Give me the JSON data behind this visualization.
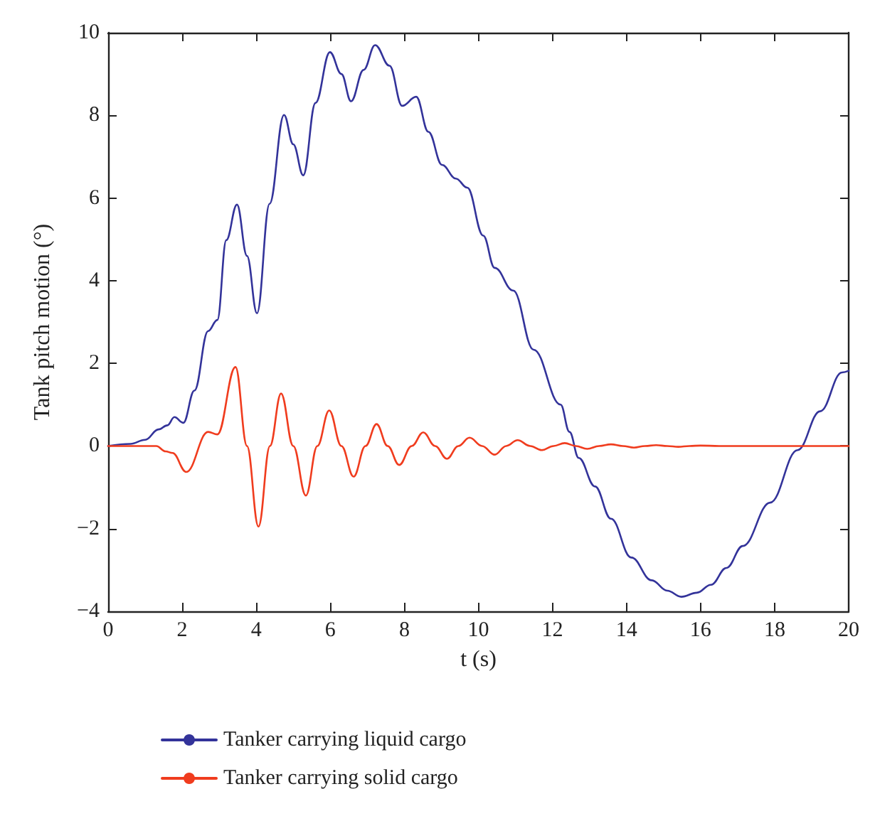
{
  "chart_data": {
    "type": "line",
    "xlabel": "t (s)",
    "ylabel": "Tank pitch motion (°)",
    "xlim": [
      0,
      20
    ],
    "ylim": [
      -4,
      10
    ],
    "xticks": [
      0,
      2,
      4,
      6,
      8,
      10,
      12,
      14,
      16,
      18,
      20
    ],
    "yticks": [
      -4,
      -2,
      0,
      2,
      4,
      6,
      8,
      10
    ],
    "grid": false,
    "legend": "bottom",
    "marker": "none",
    "line_style": "solid",
    "series": [
      {
        "name": "Tanker carrying liquid cargo",
        "color": "#33339a",
        "x": [
          0,
          0.6,
          1.0,
          1.36,
          1.6,
          1.79,
          2.03,
          2.33,
          2.7,
          2.95,
          3.19,
          3.48,
          3.75,
          4.02,
          4.36,
          4.75,
          5.0,
          5.27,
          5.6,
          5.99,
          6.3,
          6.56,
          6.9,
          7.21,
          7.6,
          7.94,
          8.32,
          8.65,
          9.02,
          9.39,
          9.7,
          10.13,
          10.44,
          10.94,
          11.49,
          12.22,
          12.46,
          12.71,
          13.15,
          13.58,
          14.13,
          14.68,
          15.1,
          15.48,
          15.9,
          16.28,
          16.7,
          17.14,
          17.88,
          18.62,
          19.23,
          19.82,
          20
        ],
        "values": [
          0,
          0.05,
          0.15,
          0.4,
          0.5,
          0.7,
          0.56,
          1.34,
          2.78,
          3.05,
          4.98,
          5.84,
          4.6,
          3.21,
          5.86,
          8.01,
          7.3,
          6.55,
          8.3,
          9.53,
          9.0,
          8.34,
          9.1,
          9.7,
          9.2,
          8.23,
          8.45,
          7.6,
          6.8,
          6.47,
          6.25,
          5.09,
          4.31,
          3.76,
          2.33,
          1.0,
          0.34,
          -0.29,
          -0.98,
          -1.76,
          -2.7,
          -3.25,
          -3.5,
          -3.65,
          -3.55,
          -3.36,
          -2.95,
          -2.42,
          -1.37,
          -0.1,
          0.84,
          1.78,
          1.82
        ]
      },
      {
        "name": "Tanker carrying solid cargo",
        "color": "#f03c1e",
        "x": [
          0,
          1.3,
          1.55,
          1.74,
          2.11,
          2.7,
          2.95,
          3.44,
          3.75,
          4.06,
          4.37,
          4.67,
          5.0,
          5.34,
          5.65,
          5.97,
          6.3,
          6.63,
          6.95,
          7.25,
          7.55,
          7.86,
          8.2,
          8.51,
          8.83,
          9.15,
          9.46,
          9.76,
          10.1,
          10.44,
          10.75,
          11.06,
          11.4,
          11.71,
          12.03,
          12.33,
          12.63,
          12.94,
          13.26,
          13.58,
          13.9,
          14.2,
          14.5,
          14.8,
          15.1,
          15.4,
          15.7,
          16.0,
          16.5,
          17.0,
          18.0,
          19.0,
          20
        ],
        "values": [
          0,
          0,
          -0.13,
          -0.17,
          -0.63,
          0.34,
          0.28,
          1.91,
          0,
          -1.95,
          0,
          1.27,
          0,
          -1.2,
          0,
          0.86,
          0,
          -0.74,
          0,
          0.53,
          0,
          -0.46,
          0,
          0.33,
          0,
          -0.31,
          0,
          0.2,
          0,
          -0.21,
          0,
          0.14,
          0,
          -0.1,
          0,
          0.07,
          0,
          -0.07,
          0,
          0.04,
          0,
          -0.04,
          0,
          0.02,
          0,
          -0.02,
          0,
          0.01,
          0,
          0,
          0,
          0,
          0
        ]
      }
    ]
  }
}
